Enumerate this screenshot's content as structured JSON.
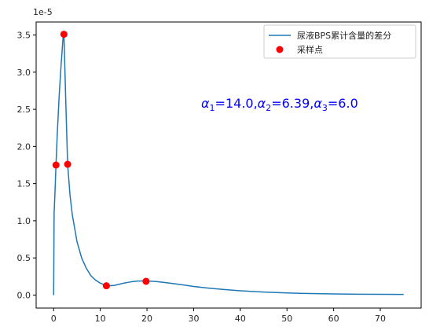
{
  "chart_data": {
    "type": "line",
    "title": "",
    "xlabel": "",
    "ylabel": "",
    "y_offset_label": "1e-5",
    "xlim": [
      -3.75,
      78.75
    ],
    "ylim": [
      -0.175,
      3.675
    ],
    "x_ticks": [
      0,
      10,
      20,
      30,
      40,
      50,
      60,
      70
    ],
    "x_tick_labels": [
      "0",
      "10",
      "20",
      "30",
      "40",
      "50",
      "60",
      "70"
    ],
    "y_ticks": [
      0.0,
      0.5,
      1.0,
      1.5,
      2.0,
      2.5,
      3.0,
      3.5
    ],
    "y_tick_labels": [
      "0.0",
      "0.5",
      "1.0",
      "1.5",
      "2.0",
      "2.5",
      "3.0",
      "3.5"
    ],
    "grid": false,
    "legend_position": "top-right",
    "series": [
      {
        "name": "尿液BPS累计含量的差分",
        "kind": "line",
        "color": "#1f77b4",
        "x": [
          0,
          0.1,
          0.3,
          0.5,
          0.8,
          1.2,
          1.6,
          2.0,
          2.2,
          2.6,
          3.0,
          3.5,
          4.0,
          5.0,
          6.0,
          7.0,
          8.0,
          9.0,
          10.0,
          11.0,
          12.0,
          13.0,
          14.0,
          15.0,
          16.0,
          17.0,
          18.0,
          19.0,
          20.0,
          22.0,
          24.0,
          26.0,
          28.0,
          30.0,
          33.0,
          36.0,
          40.0,
          45.0,
          50.0,
          55.0,
          60.0,
          65.0,
          70.0,
          75.0
        ],
        "y": [
          0.0,
          1.1,
          1.4,
          1.75,
          2.2,
          2.7,
          3.1,
          3.45,
          3.52,
          2.6,
          1.76,
          1.35,
          1.08,
          0.72,
          0.5,
          0.36,
          0.26,
          0.2,
          0.16,
          0.135,
          0.125,
          0.13,
          0.145,
          0.16,
          0.172,
          0.182,
          0.188,
          0.19,
          0.19,
          0.182,
          0.168,
          0.152,
          0.134,
          0.116,
          0.095,
          0.077,
          0.058,
          0.04,
          0.028,
          0.02,
          0.015,
          0.012,
          0.01,
          0.009
        ]
      },
      {
        "name": "采样点",
        "kind": "scatter",
        "color": "#ff0000",
        "x": [
          0.5,
          2.2,
          3.0,
          11.3,
          19.8
        ],
        "y": [
          1.75,
          3.51,
          1.76,
          0.125,
          0.185
        ]
      }
    ],
    "annotation": {
      "text": "α1=14.0,  α2=6.39,  α3=6.0",
      "parts": [
        {
          "sym": "α",
          "sub": "1",
          "val": "=14.0,"
        },
        {
          "sym": "α",
          "sub": "2",
          "val": "=6.39,"
        },
        {
          "sym": "α",
          "sub": "3",
          "val": "=6.0"
        }
      ],
      "color": "#0000ff"
    }
  }
}
